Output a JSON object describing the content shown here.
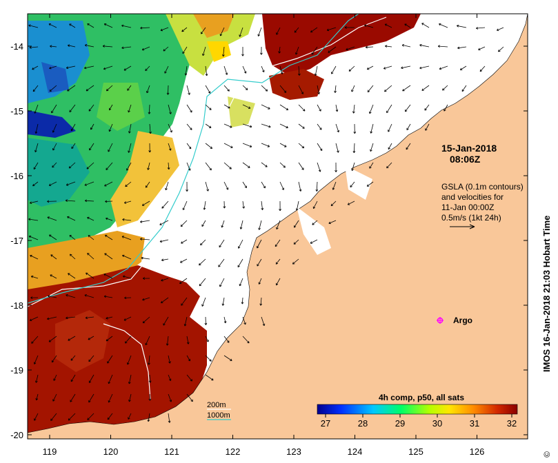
{
  "map": {
    "timestamp_line1": "15-Jan-2018",
    "timestamp_line2": "08:06Z",
    "gsla_lines": [
      "GSLA (0.1m contours)",
      "and velocities for",
      "11-Jan 00:00Z",
      "0.5m/s (1kt 24h)"
    ],
    "argo_label": "Argo",
    "contour_legend": {
      "shallow": "200m",
      "deep": "1000m"
    },
    "colorbar_title": "4h comp, p50, all sats",
    "colorbar_ticks": [
      "27",
      "28",
      "29",
      "30",
      "31",
      "32"
    ],
    "credit": "IMOS 16-Jan-2018 21:03 Hobart Time",
    "credit_symbol": "©",
    "lon_ticks": [
      "119",
      "120",
      "121",
      "122",
      "123",
      "124",
      "125",
      "126"
    ],
    "lat_ticks": [
      "-14",
      "-15",
      "-16",
      "-17",
      "-18",
      "-19",
      "-20"
    ],
    "colors": {
      "land": "#f9c799",
      "cold": "#00008f",
      "mid": "#00ff66",
      "warm": "#ffd700",
      "hot": "#8b0000",
      "contour_200m": "#ffffff",
      "contour_1000m": "#33cccc",
      "argo": "#ff00ff"
    }
  }
}
